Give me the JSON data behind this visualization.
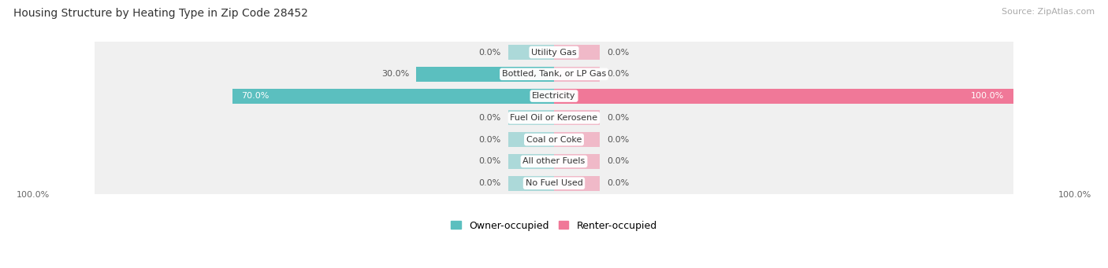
{
  "title": "Housing Structure by Heating Type in Zip Code 28452",
  "source": "Source: ZipAtlas.com",
  "categories": [
    "Utility Gas",
    "Bottled, Tank, or LP Gas",
    "Electricity",
    "Fuel Oil or Kerosene",
    "Coal or Coke",
    "All other Fuels",
    "No Fuel Used"
  ],
  "owner_values": [
    0.0,
    30.0,
    70.0,
    0.0,
    0.0,
    0.0,
    0.0
  ],
  "renter_values": [
    0.0,
    0.0,
    100.0,
    0.0,
    0.0,
    0.0,
    0.0
  ],
  "owner_color": "#5BBFBF",
  "renter_color": "#F07898",
  "row_bg_color": "#EFEFEF",
  "row_bg_alt": "#E8E8E8",
  "max_val": 100.0,
  "stub_val": 10.0,
  "figsize": [
    14.06,
    3.41
  ],
  "dpi": 100,
  "title_fontsize": 10,
  "label_fontsize": 8,
  "cat_fontsize": 8,
  "source_fontsize": 8
}
